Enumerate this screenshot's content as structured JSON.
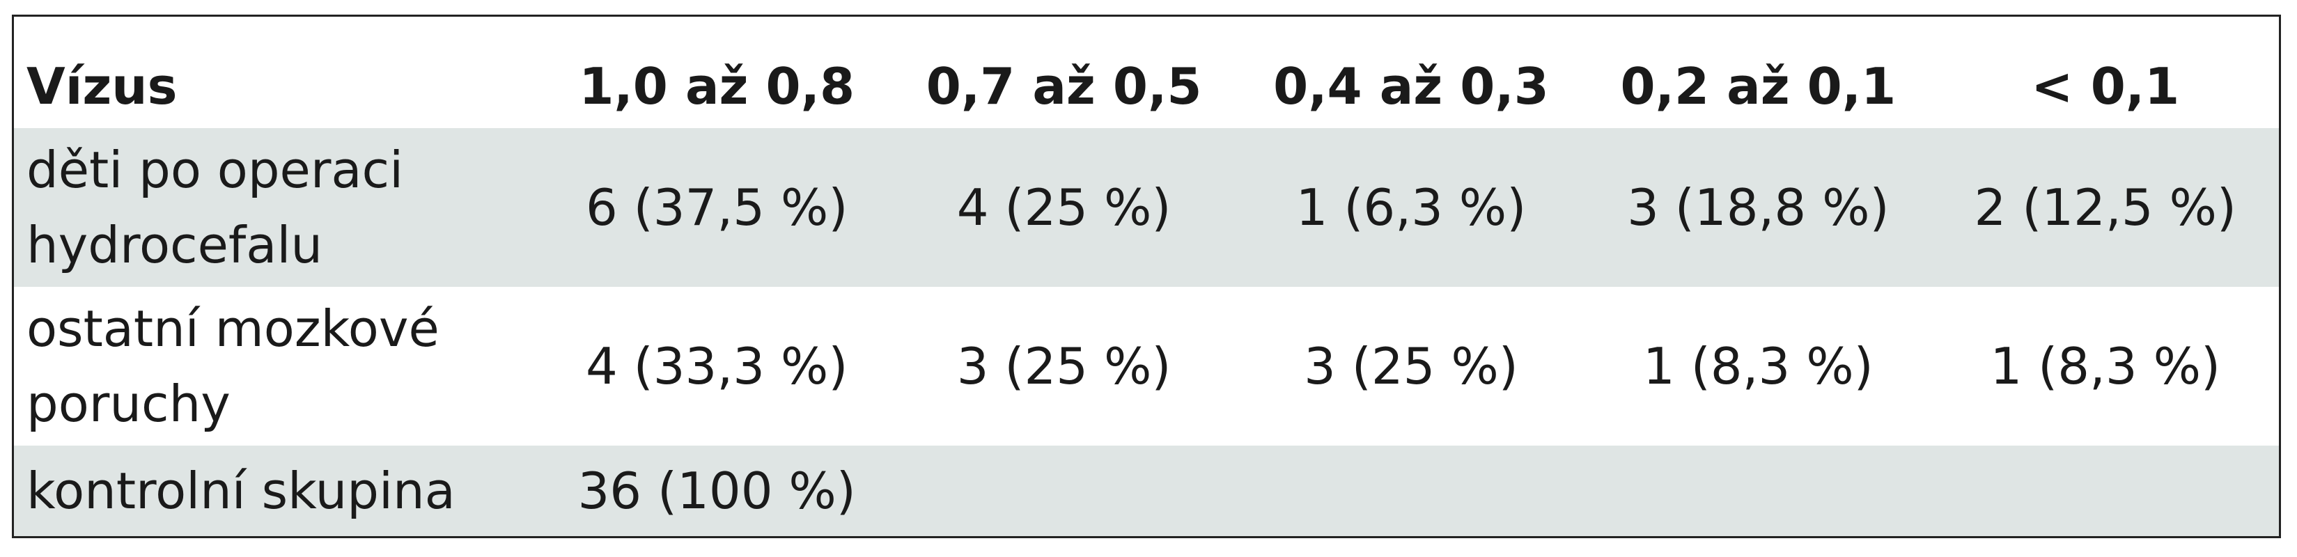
{
  "table": {
    "header": [
      "Vízus",
      "1,0 až 0,8",
      "0,7 až 0,5",
      "0,4 až 0,3",
      "0,2 až 0,1",
      "< 0,1"
    ],
    "rows": [
      [
        "děti po operaci hydrocefalu",
        "6 (37,5 %)",
        "4 (25 %)",
        "1 (6,3 %)",
        "3 (18,8 %)",
        "2 (12,5 %)"
      ],
      [
        "ostatní mozkové poruchy",
        "4 (33,3 %)",
        "3 (25 %)",
        "3 (25 %)",
        "1 (8,3 %)",
        "1 (8,3 %)"
      ],
      [
        "kontrolní skupina",
        "36 (100 %)"
      ]
    ]
  }
}
